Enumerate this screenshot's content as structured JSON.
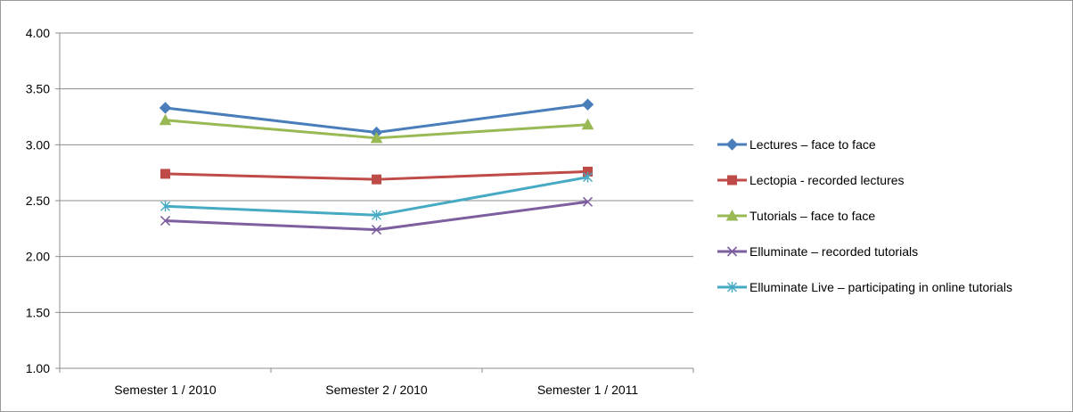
{
  "chart_data": {
    "type": "line",
    "title": "",
    "xlabel": "",
    "ylabel": "",
    "categories": [
      "Semester 1 / 2010",
      "Semester 2 / 2010",
      "Semester 1 / 2011"
    ],
    "ylim": [
      1.0,
      4.0
    ],
    "yticks": [
      "1.00",
      "1.50",
      "2.00",
      "2.50",
      "3.00",
      "3.50",
      "4.00"
    ],
    "grid": true,
    "legend_position": "right",
    "series": [
      {
        "name": "Lectures – face to face",
        "values": [
          3.33,
          3.11,
          3.36
        ],
        "color": "#4a7ebb",
        "marker": "diamond"
      },
      {
        "name": "Lectopia  - recorded lectures",
        "values": [
          2.74,
          2.69,
          2.76
        ],
        "color": "#be4b48",
        "marker": "square"
      },
      {
        "name": "Tutorials – face to face",
        "values": [
          3.22,
          3.06,
          3.18
        ],
        "color": "#98b954",
        "marker": "triangle"
      },
      {
        "name": "Elluminate – recorded tutorials",
        "values": [
          2.32,
          2.24,
          2.49
        ],
        "color": "#7d5fa0",
        "marker": "x"
      },
      {
        "name": "Elluminate Live – participating in online tutorials",
        "values": [
          2.45,
          2.37,
          2.71
        ],
        "color": "#46aac5",
        "marker": "star"
      }
    ]
  }
}
